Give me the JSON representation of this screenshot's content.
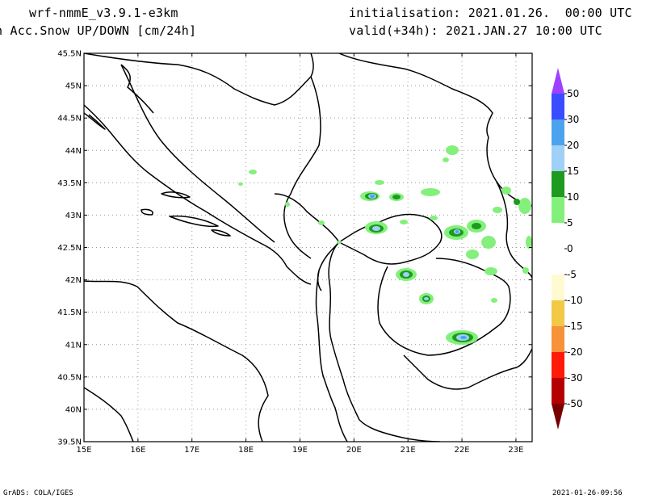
{
  "header": {
    "model": "wrf-nmmE_v3.9.1-e3km",
    "field": "h Acc.Snow UP/DOWN [cm/24h]",
    "initialisation": "initialisation: 2021.01.26.  00:00 UTC",
    "valid": "valid(+34h): 2021.JAN.27 10:00 UTC"
  },
  "footer": {
    "credit": "GrADS: COLA/IGES",
    "timestamp": "2021-01-26-09:56"
  },
  "map": {
    "lat_range": [
      39.5,
      45.5
    ],
    "lon_range": [
      15,
      23.3
    ],
    "lat_labels": [
      "45.5N",
      "45N",
      "44.5N",
      "44N",
      "43.5N",
      "43N",
      "42.5N",
      "42N",
      "41.5N",
      "41N",
      "40.5N",
      "40N",
      "39.5N"
    ],
    "lat_values": [
      45.5,
      45,
      44.5,
      44,
      43.5,
      43,
      42.5,
      42,
      41.5,
      41,
      40.5,
      40,
      39.5
    ],
    "lon_labels": [
      "15E",
      "16E",
      "17E",
      "18E",
      "19E",
      "20E",
      "21E",
      "22E",
      "23E"
    ],
    "lon_values": [
      15,
      16,
      17,
      18,
      19,
      20,
      21,
      22,
      23
    ],
    "grid": "dotted"
  },
  "colorbar": {
    "labels": [
      "50",
      "30",
      "20",
      "15",
      "10",
      "5",
      "0",
      "-5",
      "-10",
      "-15",
      "-20",
      "-30",
      "-50"
    ],
    "colors": {
      "top_arrow": "#a040ff",
      "s30_50": "#3a4cff",
      "s20_30": "#4da2ee",
      "s15_20": "#9fd0f8",
      "s10_15": "#1e9a1e",
      "s5_10": "#84f07c",
      "zero": "#ffffff",
      "n5": "#fffad0",
      "n10": "#f2c846",
      "n15": "#f7913a",
      "n20": "#ff1a0a",
      "n30": "#b50000",
      "bottom_arrow": "#7a0000"
    }
  }
}
